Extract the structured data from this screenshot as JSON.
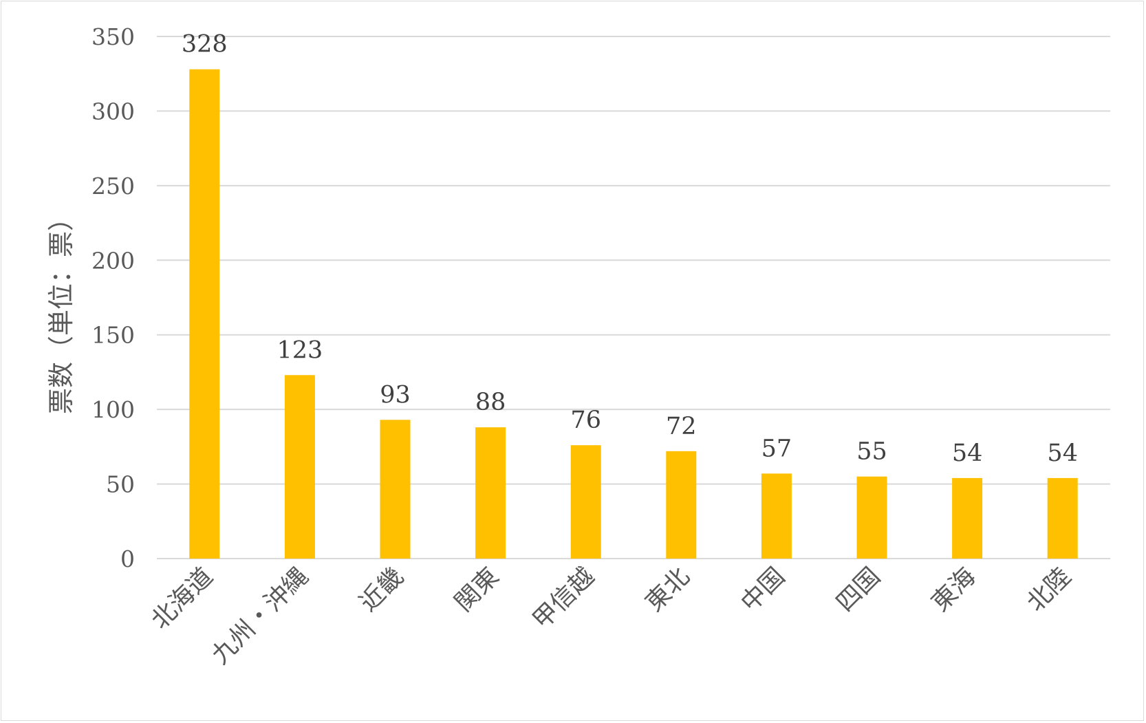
{
  "chart_data": {
    "type": "bar",
    "title": "",
    "xlabel": "",
    "ylabel": "票数（単位：票）",
    "categories": [
      "北海道",
      "九州・沖縄",
      "近畿",
      "関東",
      "甲信越",
      "東北",
      "中国",
      "四国",
      "東海",
      "北陸"
    ],
    "values": [
      328,
      123,
      93,
      88,
      76,
      72,
      57,
      55,
      54,
      54
    ],
    "data_labels": [
      "328",
      "123",
      "93",
      "88",
      "76",
      "72",
      "57",
      "55",
      "54",
      "54"
    ],
    "ylim": [
      0,
      350
    ],
    "y_ticks": [
      0,
      50,
      100,
      150,
      200,
      250,
      300,
      350
    ],
    "y_tick_labels": [
      "0",
      "50",
      "100",
      "150",
      "200",
      "250",
      "300",
      "350"
    ],
    "grid": true,
    "legend": "none",
    "colors": {
      "bar": "#FFC000",
      "grid": "#d9d9d9",
      "axis": "#d9d9d9",
      "tick_text": "#595959",
      "label_text": "#404040"
    }
  }
}
